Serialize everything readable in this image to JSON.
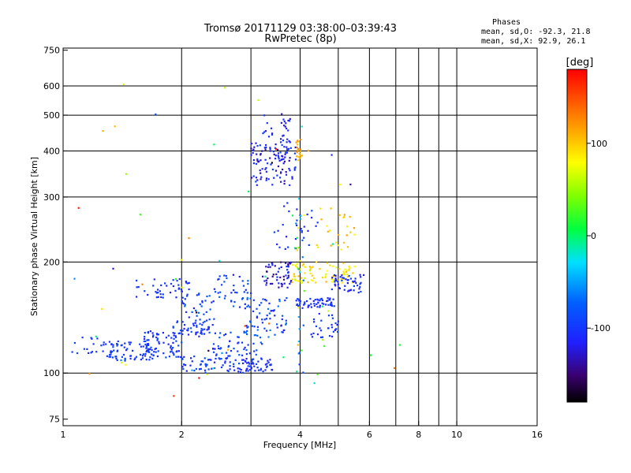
{
  "chart_data": {
    "type": "scatter",
    "title": "Tromsø 20171129 03:38:00–03:39:43",
    "subtitle": "RwPretec (8p)",
    "xlabel": "Frequency [MHz]",
    "ylabel": "Stationary phase Virtual Height [km]",
    "x_scale": "log",
    "y_scale": "log",
    "xlim": [
      1,
      16
    ],
    "ylim": [
      72,
      760
    ],
    "x_ticks": [
      1,
      2,
      4,
      6,
      8,
      10,
      16
    ],
    "x_tick_labels": [
      "1",
      "2",
      "4",
      "6",
      "8",
      "10",
      "16"
    ],
    "x_gridlines": [
      1,
      2,
      3,
      4,
      5,
      6,
      7,
      8,
      9,
      10,
      16
    ],
    "y_ticks": [
      75,
      100,
      200,
      300,
      400,
      500,
      600,
      750
    ],
    "y_tick_labels": [
      "75",
      "100",
      "200",
      "300",
      "400",
      "500",
      "600",
      "750"
    ],
    "y_gridlines": [
      100,
      200,
      300,
      400,
      500,
      600
    ],
    "grid": true,
    "stats": {
      "heading": "Phases",
      "line_o": "mean, sd,O: -92.3, 21.8",
      "line_x": "mean, sd,X:  92.9, 26.1"
    },
    "colorbar": {
      "unit": "[deg]",
      "range": [
        -180,
        180
      ],
      "tick_values": [
        100,
        0,
        -100
      ],
      "tick_labels": [
        "100",
        "0",
        "-100"
      ],
      "colormap": "rainbow"
    },
    "clusters": [
      {
        "x": [
          1.05,
          1.3
        ],
        "y": [
          110,
          125
        ],
        "phase": [
          -90,
          -110
        ],
        "n": 20
      },
      {
        "x": [
          1.3,
          1.7
        ],
        "y": [
          108,
          122
        ],
        "phase": [
          -90,
          -110
        ],
        "n": 70
      },
      {
        "x": [
          1.6,
          2.0
        ],
        "y": [
          110,
          130
        ],
        "phase": [
          -80,
          -120
        ],
        "n": 70
      },
      {
        "x": [
          1.9,
          2.4
        ],
        "y": [
          125,
          140
        ],
        "phase": [
          -80,
          -120
        ],
        "n": 55
      },
      {
        "x": [
          2.0,
          2.9
        ],
        "y": [
          100,
          112
        ],
        "phase": [
          -80,
          -120
        ],
        "n": 70
      },
      {
        "x": [
          2.4,
          3.2
        ],
        "y": [
          112,
          130
        ],
        "phase": [
          -70,
          -120
        ],
        "n": 45
      },
      {
        "x": [
          1.5,
          2.1
        ],
        "y": [
          160,
          180
        ],
        "phase": [
          -90,
          -120
        ],
        "n": 45
      },
      {
        "x": [
          2.0,
          2.5
        ],
        "y": [
          140,
          165
        ],
        "phase": [
          -70,
          -120
        ],
        "n": 30
      },
      {
        "x": [
          2.4,
          3.0
        ],
        "y": [
          150,
          185
        ],
        "phase": [
          -70,
          -120
        ],
        "n": 40
      },
      {
        "x": [
          2.9,
          3.4
        ],
        "y": [
          100,
          110
        ],
        "phase": [
          -90,
          -120
        ],
        "n": 45
      },
      {
        "x": [
          2.9,
          3.7
        ],
        "y": [
          125,
          160
        ],
        "phase": [
          -60,
          -120
        ],
        "n": 65
      },
      {
        "x": [
          3.2,
          3.8
        ],
        "y": [
          170,
          200
        ],
        "phase": [
          -100,
          -150
        ],
        "n": 55
      },
      {
        "x": [
          3.9,
          4.9
        ],
        "y": [
          150,
          160
        ],
        "phase": [
          -90,
          -120
        ],
        "n": 55
      },
      {
        "x": [
          4.2,
          5.0
        ],
        "y": [
          125,
          145
        ],
        "phase": [
          -90,
          -120
        ],
        "n": 30
      },
      {
        "x": [
          3.8,
          5.6
        ],
        "y": [
          175,
          200
        ],
        "phase": [
          60,
          110
        ],
        "n": 80
      },
      {
        "x": [
          4.8,
          5.8
        ],
        "y": [
          165,
          185
        ],
        "phase": [
          -90,
          -130
        ],
        "n": 50
      },
      {
        "x": [
          3.0,
          3.9
        ],
        "y": [
          320,
          420
        ],
        "phase": [
          -90,
          -140
        ],
        "n": 110
      },
      {
        "x": [
          3.2,
          3.8
        ],
        "y": [
          420,
          510
        ],
        "phase": [
          -90,
          -130
        ],
        "n": 30
      },
      {
        "x": [
          3.9,
          4.05
        ],
        "y": [
          375,
          430
        ],
        "phase": [
          100,
          130
        ],
        "n": 20
      },
      {
        "x": [
          3.3,
          4.5
        ],
        "y": [
          215,
          290
        ],
        "phase": [
          -90,
          -120
        ],
        "n": 30
      },
      {
        "x": [
          4.4,
          5.5
        ],
        "y": [
          215,
          280
        ],
        "phase": [
          80,
          120
        ],
        "n": 25
      },
      {
        "x": [
          3.9,
          4.1
        ],
        "y": [
          100,
          300
        ],
        "phase": [
          -100,
          110
        ],
        "n": 30
      },
      {
        "x": [
          1.05,
          7.2
        ],
        "y": [
          85,
          650
        ],
        "phase": [
          -180,
          180
        ],
        "n": 60
      }
    ]
  }
}
